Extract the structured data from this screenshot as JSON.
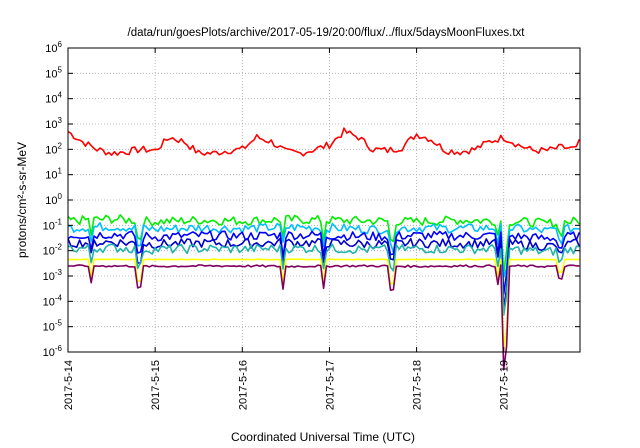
{
  "chart_data": {
    "type": "line",
    "title": "/data/run/goesPlots/archive/2017-05-19/20:00/flux/../flux/5daysMoonFluxes.txt",
    "xlabel": "Coordinated Universal Time (UTC)",
    "ylabel": "protons/cm²-s-sr-MeV",
    "y_scale": "log",
    "ylim": [
      1e-06,
      1000000.0
    ],
    "y_ticks": [
      {
        "value": 1e-06,
        "base": "10",
        "exp": "-6"
      },
      {
        "value": 1e-05,
        "base": "10",
        "exp": "-5"
      },
      {
        "value": 0.0001,
        "base": "10",
        "exp": "-4"
      },
      {
        "value": 0.001,
        "base": "10",
        "exp": "-3"
      },
      {
        "value": 0.01,
        "base": "10",
        "exp": "-2"
      },
      {
        "value": 0.1,
        "base": "10",
        "exp": "-1"
      },
      {
        "value": 1.0,
        "base": "10",
        "exp": "0"
      },
      {
        "value": 10.0,
        "base": "10",
        "exp": "1"
      },
      {
        "value": 100.0,
        "base": "10",
        "exp": "2"
      },
      {
        "value": 1000.0,
        "base": "10",
        "exp": "3"
      },
      {
        "value": 10000.0,
        "base": "10",
        "exp": "4"
      },
      {
        "value": 100000.0,
        "base": "10",
        "exp": "5"
      },
      {
        "value": 1000000.0,
        "base": "10",
        "exp": "6"
      }
    ],
    "x_ticks": [
      "2017-5-14",
      "2017-5-15",
      "2017-5-16",
      "2017-5-17",
      "2017-5-18",
      "2017-5-19"
    ],
    "xlim": [
      "2017-5-14",
      "2017-5-19 21:00"
    ],
    "grid": true,
    "legend": "none",
    "series": [
      {
        "color": "#ff0000",
        "x": [
          0,
          4,
          8,
          12,
          16,
          20,
          24,
          28,
          32,
          36,
          40,
          44,
          48,
          52,
          56,
          60,
          64,
          68,
          72,
          76,
          80,
          84,
          88,
          92,
          96,
          100,
          104,
          108,
          112,
          116,
          120,
          124,
          128,
          132,
          136,
          140,
          141
        ],
        "values": [
          500,
          200,
          100,
          70,
          80,
          100,
          90,
          300,
          200,
          70,
          70,
          90,
          100,
          300,
          200,
          80,
          70,
          100,
          150,
          500,
          300,
          100,
          90,
          120,
          400,
          250,
          90,
          80,
          100,
          200,
          300,
          150,
          90,
          90,
          120,
          100,
          300
        ]
      },
      {
        "color": "#00ee00",
        "x": [
          0,
          12,
          24,
          36,
          48,
          60,
          72,
          84,
          96,
          108,
          120,
          132,
          141
        ],
        "values": [
          0.15,
          0.18,
          0.14,
          0.16,
          0.15,
          0.17,
          0.16,
          0.15,
          0.14,
          0.16,
          0.15,
          0.12,
          0.15
        ]
      },
      {
        "color": "#00bfff",
        "x": [
          0,
          12,
          24,
          36,
          48,
          60,
          72,
          84,
          96,
          108,
          120,
          132,
          141
        ],
        "values": [
          0.08,
          0.09,
          0.07,
          0.08,
          0.075,
          0.085,
          0.08,
          0.07,
          0.08,
          0.075,
          0.08,
          0.06,
          0.08
        ]
      },
      {
        "color": "#0000ff",
        "x": [
          0,
          12,
          24,
          36,
          48,
          60,
          72,
          84,
          96,
          108,
          120,
          132,
          141
        ],
        "values": [
          0.04,
          0.045,
          0.035,
          0.04,
          0.038,
          0.042,
          0.04,
          0.036,
          0.04,
          0.038,
          0.04,
          0.03,
          0.04
        ]
      },
      {
        "color": "#0000cd",
        "x": [
          0,
          12,
          24,
          36,
          48,
          60,
          72,
          84,
          96,
          108,
          120,
          132,
          141
        ],
        "values": [
          0.02,
          0.022,
          0.018,
          0.02,
          0.019,
          0.021,
          0.02,
          0.018,
          0.02,
          0.019,
          0.02,
          0.015,
          0.02
        ]
      },
      {
        "color": "#20b2aa",
        "x": [
          0,
          12,
          24,
          36,
          48,
          60,
          72,
          84,
          96,
          108,
          120,
          132,
          141
        ],
        "values": [
          0.012,
          0.013,
          0.011,
          0.012,
          0.0115,
          0.0125,
          0.012,
          0.011,
          0.012,
          0.0115,
          0.012,
          0.009,
          0.012
        ]
      },
      {
        "color": "#ffff00",
        "x": [
          0,
          141
        ],
        "values": [
          0.0045,
          0.0045
        ]
      },
      {
        "color": "#800060",
        "x": [
          0,
          12,
          24,
          36,
          48,
          60,
          72,
          84,
          96,
          108,
          120,
          132,
          141
        ],
        "values": [
          0.0025,
          0.0025,
          0.0024,
          0.0025,
          0.0025,
          0.0024,
          0.0025,
          0.0025,
          0.0024,
          0.0025,
          0.0025,
          0.0024,
          0.0025
        ]
      }
    ]
  }
}
